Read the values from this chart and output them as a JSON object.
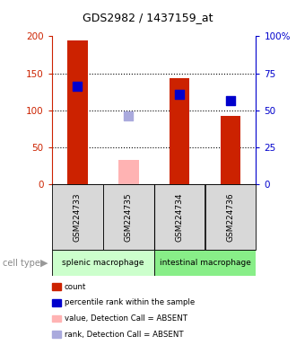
{
  "title": "GDS2982 / 1437159_at",
  "samples": [
    "GSM224733",
    "GSM224735",
    "GSM224734",
    "GSM224736"
  ],
  "count_values": [
    194,
    null,
    143,
    93
  ],
  "count_absent_values": [
    null,
    33,
    null,
    null
  ],
  "percentile_values": [
    132,
    null,
    122,
    113
  ],
  "percentile_absent_values": [
    null,
    93,
    null,
    null
  ],
  "bar_color_present": "#cc2200",
  "bar_color_absent": "#ffb3b3",
  "dot_color_present": "#0000cc",
  "dot_color_absent": "#aaaadd",
  "left_axis_color": "#cc2200",
  "right_axis_color": "#0000cc",
  "ylim_left": [
    0,
    200
  ],
  "ylim_right": [
    0,
    100
  ],
  "yticks_left": [
    0,
    50,
    100,
    150,
    200
  ],
  "yticks_right": [
    0,
    25,
    50,
    75,
    100
  ],
  "ytick_labels_right": [
    "0",
    "25",
    "50",
    "75",
    "100%"
  ],
  "hgrid_vals": [
    50,
    100,
    150
  ],
  "sample_box_color": "#d8d8d8",
  "ct_color_splenic": "#ccffcc",
  "ct_color_intestinal": "#88ee88",
  "ct_label_splenic": "splenic macrophage",
  "ct_label_intestinal": "intestinal macrophage",
  "legend_colors": [
    "#cc2200",
    "#0000cc",
    "#ffb3b3",
    "#aaaadd"
  ],
  "legend_labels": [
    "count",
    "percentile rank within the sample",
    "value, Detection Call = ABSENT",
    "rank, Detection Call = ABSENT"
  ],
  "bar_width": 0.4,
  "dot_size": 50,
  "bg_color": "#ffffff"
}
